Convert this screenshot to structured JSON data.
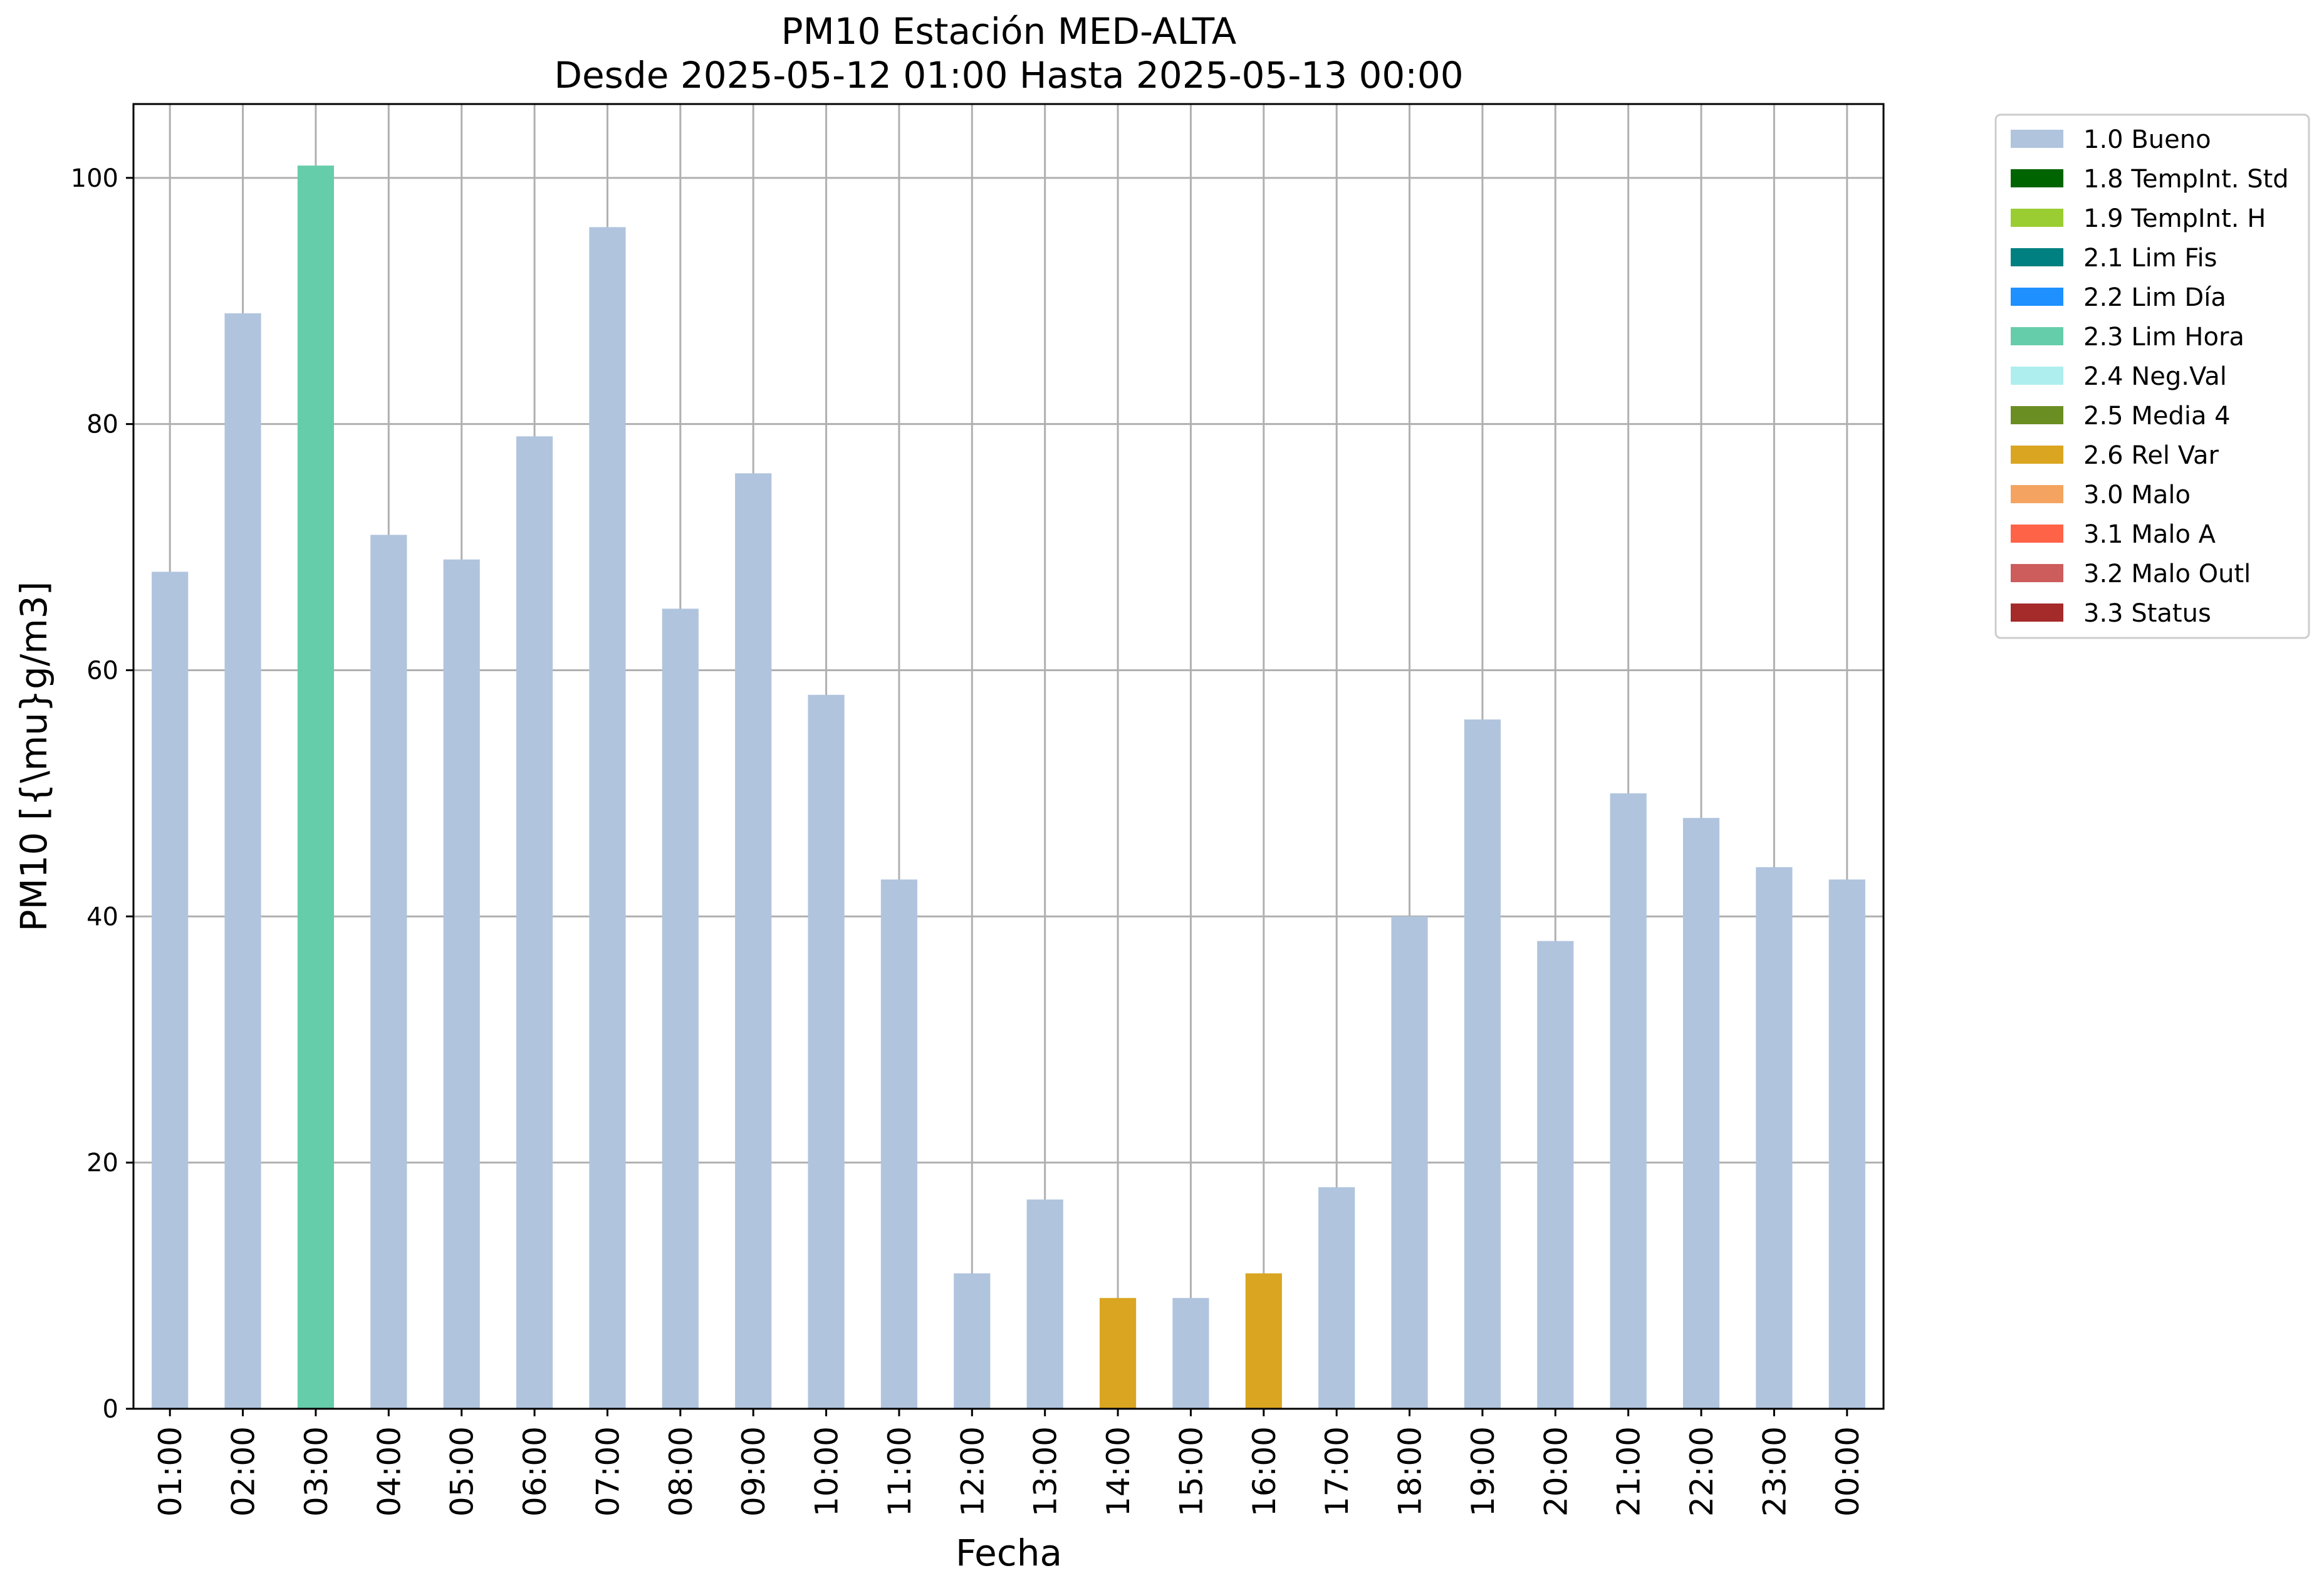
{
  "chart_data": {
    "type": "bar",
    "title": "PM10 Estación MED-ALTA",
    "subtitle": "Desde 2025-05-12 01:00 Hasta 2025-05-13 00:00",
    "xlabel": "Fecha",
    "ylabel": "PM10 [{\\mu}g/m3]",
    "ylim": [
      0,
      106
    ],
    "yticks": [
      0,
      20,
      40,
      60,
      80,
      100
    ],
    "grid": true,
    "legend_position": "outside-right-top",
    "categories": [
      "01:00",
      "02:00",
      "03:00",
      "04:00",
      "05:00",
      "06:00",
      "07:00",
      "08:00",
      "09:00",
      "10:00",
      "11:00",
      "12:00",
      "13:00",
      "14:00",
      "15:00",
      "16:00",
      "17:00",
      "18:00",
      "19:00",
      "20:00",
      "21:00",
      "22:00",
      "23:00",
      "00:00"
    ],
    "values": [
      68,
      89,
      101,
      71,
      69,
      79,
      96,
      65,
      76,
      58,
      43,
      11,
      17,
      9,
      9,
      11,
      18,
      40,
      56,
      38,
      50,
      48,
      44,
      43
    ],
    "flags": [
      "1.0 Bueno",
      "1.0 Bueno",
      "2.3 Lim Hora",
      "1.0 Bueno",
      "1.0 Bueno",
      "1.0 Bueno",
      "1.0 Bueno",
      "1.0 Bueno",
      "1.0 Bueno",
      "1.0 Bueno",
      "1.0 Bueno",
      "1.0 Bueno",
      "1.0 Bueno",
      "2.6 Rel Var",
      "1.0 Bueno",
      "2.6 Rel Var",
      "1.0 Bueno",
      "1.0 Bueno",
      "1.0 Bueno",
      "1.0 Bueno",
      "1.0 Bueno",
      "1.0 Bueno",
      "1.0 Bueno",
      "1.0 Bueno"
    ],
    "legend": [
      {
        "label": "1.0 Bueno",
        "color": "#b0c4de"
      },
      {
        "label": "1.8 TempInt. Std",
        "color": "#006400"
      },
      {
        "label": "1.9 TempInt. H",
        "color": "#9acd32"
      },
      {
        "label": "2.1 Lim Fis",
        "color": "#008080"
      },
      {
        "label": "2.2 Lim Día",
        "color": "#1e90ff"
      },
      {
        "label": "2.3 Lim Hora",
        "color": "#66cdaa"
      },
      {
        "label": "2.4 Neg.Val",
        "color": "#afeeee"
      },
      {
        "label": "2.5 Media 4",
        "color": "#6b8e23"
      },
      {
        "label": "2.6 Rel Var",
        "color": "#daa520"
      },
      {
        "label": "3.0 Malo",
        "color": "#f4a460"
      },
      {
        "label": "3.1 Malo A",
        "color": "#ff6347"
      },
      {
        "label": "3.2 Malo Outl",
        "color": "#cd5c5c"
      },
      {
        "label": "3.3 Status",
        "color": "#a52a2a"
      }
    ]
  }
}
